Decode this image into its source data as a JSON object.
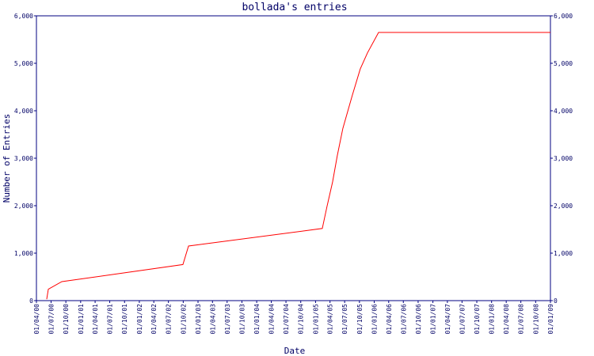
{
  "chart_data": {
    "type": "line",
    "title": "bollada's entries",
    "x_label": "Date",
    "y_label": "Number of Entries",
    "x": [
      "2000-06-04",
      "2000-06-14",
      "2000-09-06",
      "2002-09-29",
      "2002-11-03",
      "2005-02-12",
      "2005-03-13",
      "2005-04-17",
      "2005-05-16",
      "2005-06-20",
      "2005-08-18",
      "2005-10-06",
      "2005-11-20",
      "2006-01-28",
      "2009-01-01"
    ],
    "series": [
      {
        "name": "bollada",
        "color": "#ff0000",
        "values": [
          30,
          240,
          400,
          760,
          1150,
          1520,
          1980,
          2500,
          3050,
          3630,
          4330,
          4880,
          5220,
          5650,
          5650
        ]
      }
    ],
    "xlim": [
      "2000-04-01",
      "2009-01-01"
    ],
    "xticks": [
      {
        "value": "2000-04-01",
        "label": "01/04/00"
      },
      {
        "value": "2000-07-01",
        "label": "01/07/00"
      },
      {
        "value": "2000-10-01",
        "label": "01/10/00"
      },
      {
        "value": "2001-01-01",
        "label": "01/01/01"
      },
      {
        "value": "2001-04-01",
        "label": "01/04/01"
      },
      {
        "value": "2001-07-01",
        "label": "01/07/01"
      },
      {
        "value": "2001-10-01",
        "label": "01/10/01"
      },
      {
        "value": "2002-01-01",
        "label": "01/01/02"
      },
      {
        "value": "2002-04-01",
        "label": "01/04/02"
      },
      {
        "value": "2002-07-01",
        "label": "01/07/02"
      },
      {
        "value": "2002-10-01",
        "label": "01/10/02"
      },
      {
        "value": "2003-01-01",
        "label": "01/01/03"
      },
      {
        "value": "2003-04-01",
        "label": "01/04/03"
      },
      {
        "value": "2003-07-01",
        "label": "01/07/03"
      },
      {
        "value": "2003-10-01",
        "label": "01/10/03"
      },
      {
        "value": "2004-01-01",
        "label": "01/01/04"
      },
      {
        "value": "2004-04-01",
        "label": "01/04/04"
      },
      {
        "value": "2004-07-01",
        "label": "01/07/04"
      },
      {
        "value": "2004-10-01",
        "label": "01/10/04"
      },
      {
        "value": "2005-01-01",
        "label": "01/01/05"
      },
      {
        "value": "2005-04-01",
        "label": "01/04/05"
      },
      {
        "value": "2005-07-01",
        "label": "01/07/05"
      },
      {
        "value": "2005-10-01",
        "label": "01/10/05"
      },
      {
        "value": "2006-01-01",
        "label": "01/01/06"
      },
      {
        "value": "2006-04-01",
        "label": "01/04/06"
      },
      {
        "value": "2006-07-01",
        "label": "01/07/06"
      },
      {
        "value": "2006-10-01",
        "label": "01/10/06"
      },
      {
        "value": "2007-01-01",
        "label": "01/01/07"
      },
      {
        "value": "2007-04-01",
        "label": "01/04/07"
      },
      {
        "value": "2007-07-01",
        "label": "01/07/07"
      },
      {
        "value": "2007-10-01",
        "label": "01/10/07"
      },
      {
        "value": "2008-01-01",
        "label": "01/01/08"
      },
      {
        "value": "2008-04-01",
        "label": "01/04/08"
      },
      {
        "value": "2008-07-01",
        "label": "01/07/08"
      },
      {
        "value": "2008-10-01",
        "label": "01/10/08"
      },
      {
        "value": "2009-01-01",
        "label": "01/01/09"
      }
    ],
    "ylim": [
      0,
      6000
    ],
    "yticks": [
      0,
      {
        "value": 1000,
        "label": "1,000"
      },
      {
        "value": 2000,
        "label": "2,000"
      },
      {
        "value": 3000,
        "label": "3,000"
      },
      {
        "value": 4000,
        "label": "4,000"
      },
      {
        "value": 5000,
        "label": "5,000"
      },
      {
        "value": 6000,
        "label": "6,000"
      }
    ],
    "axis_color": "#000080",
    "right_axis": true
  }
}
